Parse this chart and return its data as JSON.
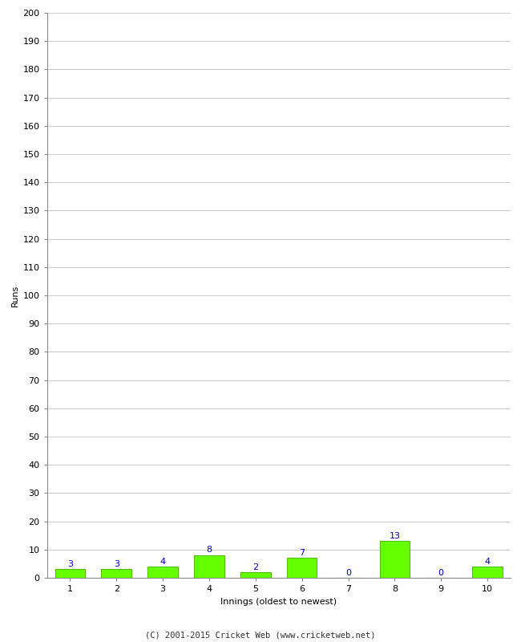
{
  "xlabel": "Innings (oldest to newest)",
  "ylabel": "Runs",
  "categories": [
    1,
    2,
    3,
    4,
    5,
    6,
    7,
    8,
    9,
    10
  ],
  "values": [
    3,
    3,
    4,
    8,
    2,
    7,
    0,
    13,
    0,
    4
  ],
  "bar_color": "#66ff00",
  "bar_edge_color": "#55bb00",
  "label_color": "#0000cc",
  "ylim": [
    0,
    200
  ],
  "yticks": [
    0,
    10,
    20,
    30,
    40,
    50,
    60,
    70,
    80,
    90,
    100,
    110,
    120,
    130,
    140,
    150,
    160,
    170,
    180,
    190,
    200
  ],
  "background_color": "#ffffff",
  "grid_color": "#cccccc",
  "footer": "(C) 2001-2015 Cricket Web (www.cricketweb.net)",
  "label_fontsize": 8,
  "axis_label_fontsize": 8,
  "tick_fontsize": 8,
  "footer_fontsize": 7.5
}
